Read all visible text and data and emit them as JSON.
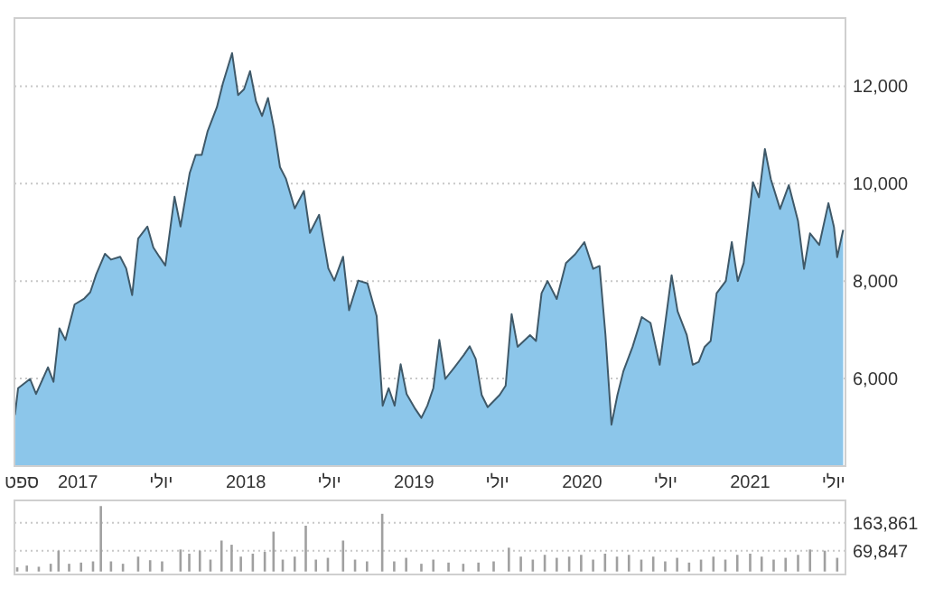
{
  "chart_data": [
    {
      "type": "area",
      "color": "#8cc6ea",
      "grid": "y",
      "x": [
        "2016-08-17",
        "2016-08-24",
        "2016-09-19",
        "2016-10-02",
        "2016-10-28",
        "2016-11-09",
        "2016-11-22",
        "2016-12-05",
        "2016-12-25",
        "2017-01-15",
        "2017-01-28",
        "2017-02-10",
        "2017-03-01",
        "2017-03-14",
        "2017-04-03",
        "2017-04-16",
        "2017-04-29",
        "2017-05-12",
        "2017-06-01",
        "2017-06-14",
        "2017-06-27",
        "2017-07-10",
        "2017-07-30",
        "2017-08-12",
        "2017-09-01",
        "2017-09-14",
        "2017-09-27",
        "2017-10-10",
        "2017-10-30",
        "2017-11-12",
        "2017-12-02",
        "2017-12-15",
        "2017-12-28",
        "2018-01-10",
        "2018-01-23",
        "2018-02-05",
        "2018-02-18",
        "2018-03-03",
        "2018-03-16",
        "2018-03-29",
        "2018-04-17",
        "2018-05-07",
        "2018-05-20",
        "2018-06-09",
        "2018-06-29",
        "2018-07-12",
        "2018-07-31",
        "2018-08-13",
        "2018-09-02",
        "2018-09-22",
        "2018-10-12",
        "2018-10-25",
        "2018-11-07",
        "2018-11-20",
        "2018-12-03",
        "2018-12-16",
        "2019-01-04",
        "2019-01-17",
        "2019-01-30",
        "2019-02-12",
        "2019-02-25",
        "2019-03-10",
        "2019-03-30",
        "2019-04-19",
        "2019-05-02",
        "2019-05-15",
        "2019-05-28",
        "2019-06-10",
        "2019-07-06",
        "2019-07-19",
        "2019-08-01",
        "2019-08-14",
        "2019-09-10",
        "2019-09-23",
        "2019-10-05",
        "2019-10-18",
        "2019-11-07",
        "2019-11-27",
        "2019-12-17",
        "2020-01-06",
        "2020-01-25",
        "2020-02-08",
        "2020-02-21",
        "2020-03-05",
        "2020-03-18",
        "2020-03-31",
        "2020-04-20",
        "2020-05-10",
        "2020-05-29",
        "2020-06-18",
        "2020-07-14",
        "2020-07-27",
        "2020-08-16",
        "2020-08-29",
        "2020-09-11",
        "2020-09-24",
        "2020-10-07",
        "2020-10-20",
        "2020-11-09",
        "2020-11-22",
        "2020-12-05",
        "2020-12-18",
        "2021-01-07",
        "2021-01-20",
        "2021-02-02",
        "2021-02-15",
        "2021-03-07",
        "2021-03-26",
        "2021-04-15",
        "2021-04-28",
        "2021-05-11",
        "2021-05-31",
        "2021-06-20",
        "2021-07-02",
        "2021-07-09",
        "2021-07-22"
      ],
      "values": [
        5250,
        5800,
        5990,
        5680,
        6230,
        5930,
        7030,
        6790,
        7520,
        7640,
        7770,
        8140,
        8560,
        8440,
        8500,
        8260,
        7710,
        8870,
        9120,
        8690,
        8500,
        8320,
        9730,
        9120,
        10220,
        10590,
        10590,
        11080,
        11570,
        12060,
        12680,
        11820,
        11940,
        12310,
        11690,
        11390,
        11760,
        11140,
        10340,
        10100,
        9490,
        9850,
        8990,
        9360,
        8260,
        8010,
        8500,
        7400,
        8010,
        7950,
        7280,
        5440,
        5800,
        5440,
        6290,
        5680,
        5370,
        5190,
        5440,
        5800,
        6790,
        5990,
        6230,
        6480,
        6660,
        6400,
        5660,
        5410,
        5660,
        5850,
        7320,
        6650,
        6890,
        6770,
        7750,
        8000,
        7630,
        8370,
        8550,
        8800,
        8250,
        8310,
        6890,
        5050,
        5660,
        6150,
        6650,
        7260,
        7140,
        6280,
        8120,
        7380,
        6890,
        6280,
        6340,
        6650,
        6770,
        7750,
        8000,
        8800,
        8000,
        8370,
        10030,
        9720,
        10710,
        10090,
        9480,
        9970,
        9230,
        8250,
        8980,
        8740,
        9600,
        9110,
        8490,
        9050
      ],
      "xlim": [
        "2016-08-16",
        "2021-07-27"
      ],
      "ylim": [
        4200,
        13400
      ],
      "xticks": [
        {
          "value": "2016-09-01",
          "label": "ספט"
        },
        {
          "value": "2017-01-01",
          "label": "2017"
        },
        {
          "value": "2017-07-01",
          "label": "יולי"
        },
        {
          "value": "2018-01-01",
          "label": "2018"
        },
        {
          "value": "2018-07-01",
          "label": "יולי"
        },
        {
          "value": "2019-01-01",
          "label": "2019"
        },
        {
          "value": "2019-07-01",
          "label": "יולי"
        },
        {
          "value": "2020-01-01",
          "label": "2020"
        },
        {
          "value": "2020-07-01",
          "label": "יולי"
        },
        {
          "value": "2021-01-01",
          "label": "2021"
        },
        {
          "value": "2021-07-01",
          "label": "יולי"
        }
      ],
      "yticks": [
        {
          "value": 6000,
          "label": "6,000"
        },
        {
          "value": 8000,
          "label": "8,000"
        },
        {
          "value": 10000,
          "label": "10,000"
        },
        {
          "value": 12000,
          "label": "12,000"
        }
      ]
    },
    {
      "type": "bar",
      "color": "#a0a0a0",
      "grid": "y",
      "tick_labels": "y",
      "x": [
        "2016-08-22",
        "2016-09-12",
        "2016-10-08",
        "2016-11-03",
        "2016-11-20",
        "2016-12-13",
        "2017-01-08",
        "2017-02-03",
        "2017-02-20",
        "2017-03-14",
        "2017-04-09",
        "2017-05-12",
        "2017-06-07",
        "2017-07-03",
        "2017-08-12",
        "2017-08-31",
        "2017-09-23",
        "2017-10-16",
        "2017-11-09",
        "2017-12-01",
        "2017-12-21",
        "2018-01-16",
        "2018-02-11",
        "2018-03-02",
        "2018-03-22",
        "2018-04-17",
        "2018-05-11",
        "2018-06-02",
        "2018-06-28",
        "2018-07-31",
        "2018-08-26",
        "2018-09-21",
        "2018-10-24",
        "2018-11-19",
        "2018-12-15",
        "2019-01-17",
        "2019-02-12",
        "2019-03-17",
        "2019-04-18",
        "2019-05-21",
        "2019-06-23",
        "2019-07-26",
        "2019-08-21",
        "2019-09-16",
        "2019-10-12",
        "2019-11-07",
        "2019-12-04",
        "2019-12-30",
        "2020-01-25",
        "2020-02-20",
        "2020-03-17",
        "2020-04-12",
        "2020-05-09",
        "2020-06-04",
        "2020-06-30",
        "2020-07-26",
        "2020-08-21",
        "2020-09-16",
        "2020-10-13",
        "2020-11-08",
        "2020-12-04",
        "2021-01-01",
        "2021-01-26",
        "2021-02-21",
        "2021-03-19",
        "2021-04-15",
        "2021-05-11",
        "2021-06-12",
        "2021-07-09"
      ],
      "values": [
        14000,
        20000,
        16000,
        26000,
        70000,
        26000,
        30000,
        34000,
        220000,
        34000,
        26000,
        50000,
        38000,
        34000,
        74000,
        60000,
        70000,
        40000,
        104000,
        90000,
        50000,
        60000,
        66000,
        134000,
        40000,
        50000,
        154000,
        40000,
        46000,
        104000,
        40000,
        34000,
        194000,
        34000,
        46000,
        26000,
        40000,
        30000,
        26000,
        30000,
        34000,
        80000,
        50000,
        40000,
        56000,
        46000,
        50000,
        56000,
        40000,
        60000,
        50000,
        56000,
        40000,
        50000,
        34000,
        46000,
        30000,
        40000,
        50000,
        40000,
        56000,
        60000,
        50000,
        40000,
        46000,
        56000,
        74000,
        70000,
        46000
      ],
      "xlim": [
        "2016-08-16",
        "2021-07-27"
      ],
      "ylim": [
        -10000,
        239000
      ],
      "yticks": [
        {
          "value": 69847,
          "label": "69,847"
        },
        {
          "value": 163861,
          "label": "163,861"
        }
      ]
    }
  ]
}
